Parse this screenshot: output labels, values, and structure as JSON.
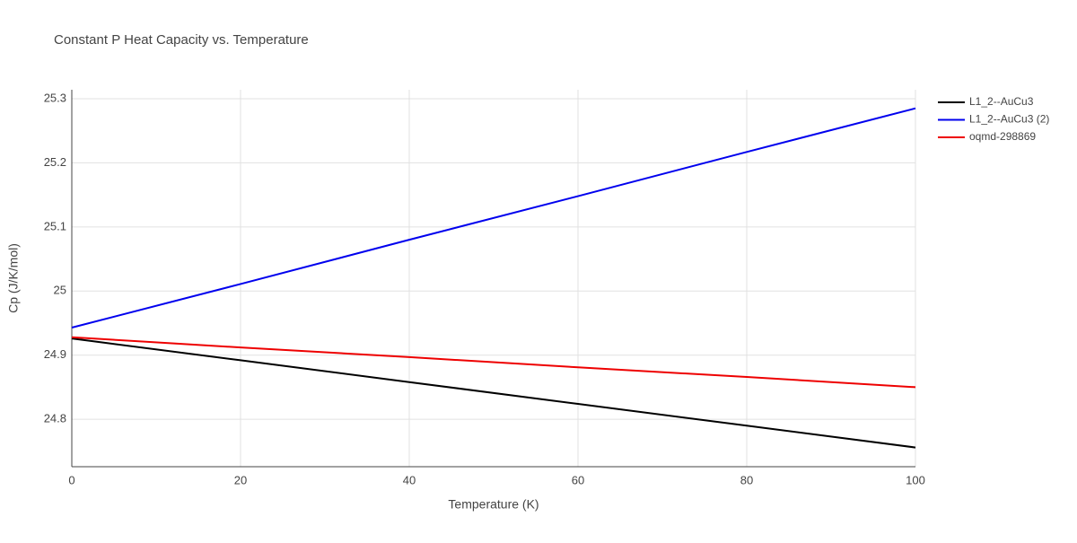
{
  "chart_data": {
    "type": "line",
    "title": "Constant P Heat Capacity vs. Temperature",
    "x_label": "Temperature (K)",
    "y_label": "Cp (J/K/mol)",
    "x": [
      0,
      20,
      40,
      60,
      80,
      100
    ],
    "series": [
      {
        "name": "L1_2--AuCu3",
        "color": "#000000",
        "values": [
          24.926,
          24.892,
          24.858,
          24.824,
          24.79,
          24.756
        ]
      },
      {
        "name": "L1_2--AuCu3 (2)",
        "color": "#0000ee",
        "values": [
          24.943,
          25.011,
          25.08,
          25.148,
          25.217,
          25.285
        ]
      },
      {
        "name": "oqmd-298869",
        "color": "#ee0000",
        "values": [
          24.928,
          24.912,
          24.897,
          24.881,
          24.866,
          24.85
        ]
      }
    ],
    "xlim": [
      0,
      100
    ],
    "xticks": [
      0,
      20,
      40,
      60,
      80,
      100
    ],
    "ylim": [
      24.726,
      25.314
    ],
    "yticks": [
      24.8,
      24.9,
      25,
      25.1,
      25.2,
      25.3
    ],
    "grid": true,
    "legend": "right"
  }
}
